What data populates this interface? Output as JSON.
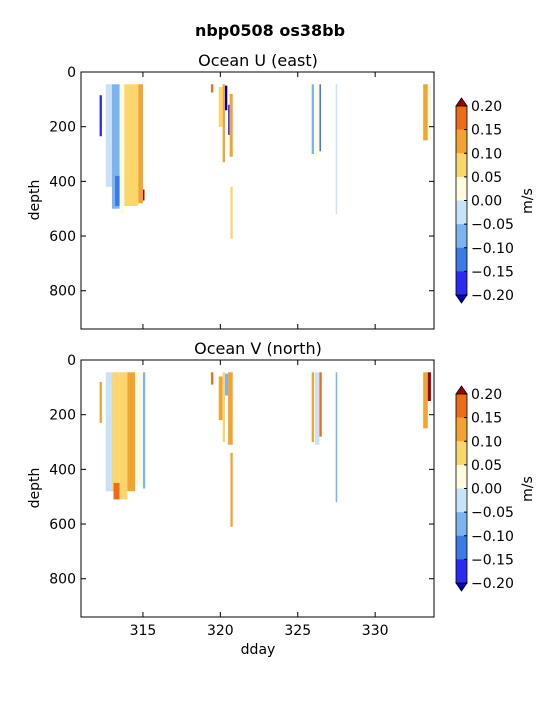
{
  "figure": {
    "suptitle": "nbp0508 os38bb"
  },
  "colorbar": {
    "label": "m/s",
    "levels": [
      -0.2,
      -0.15,
      -0.1,
      -0.05,
      0.0,
      0.05,
      0.1,
      0.15,
      0.2
    ],
    "tick_labels": [
      "−0.20",
      "−0.15",
      "−0.10",
      "−0.05",
      "0.00",
      "0.05",
      "0.10",
      "0.15",
      "0.20"
    ],
    "colors": [
      "#2a2af2",
      "#3c7ae6",
      "#7cb4ee",
      "#c8e2f6",
      "#fffbe0",
      "#fbd66c",
      "#f2a431",
      "#ec6c1c"
    ],
    "under_color": "#0000b0",
    "over_color": "#a00000"
  },
  "chart_data": [
    {
      "type": "heatmap",
      "title": "Ocean U (east)",
      "xlabel": "",
      "ylabel": "depth",
      "xlim": [
        311,
        333.8
      ],
      "ylim": [
        940,
        0
      ],
      "yticks": [
        0,
        200,
        400,
        600,
        800
      ],
      "xticks": [
        315,
        320,
        325,
        330
      ],
      "show_xticklabels": false,
      "grid": false,
      "colorbar_label": "m/s",
      "columns": [
        {
          "x0": 312.2,
          "x1": 312.35,
          "d0": 85,
          "d1": 235,
          "v": -0.18
        },
        {
          "x0": 312.6,
          "x1": 313.0,
          "d0": 45,
          "d1": 420,
          "v": -0.04
        },
        {
          "x0": 313.0,
          "x1": 313.5,
          "d0": 45,
          "d1": 500,
          "v": -0.06
        },
        {
          "x0": 313.2,
          "x1": 313.5,
          "d0": 380,
          "d1": 490,
          "v": -0.12
        },
        {
          "x0": 313.5,
          "x1": 313.8,
          "d0": 45,
          "d1": 520,
          "v": 0.02
        },
        {
          "x0": 313.8,
          "x1": 314.7,
          "d0": 45,
          "d1": 490,
          "v": 0.08
        },
        {
          "x0": 314.7,
          "x1": 315.0,
          "d0": 45,
          "d1": 480,
          "v": 0.12
        },
        {
          "x0": 315.0,
          "x1": 315.1,
          "d0": 430,
          "d1": 470,
          "v": 0.22
        },
        {
          "x0": 319.4,
          "x1": 319.55,
          "d0": 45,
          "d1": 75,
          "v": 0.17
        },
        {
          "x0": 319.9,
          "x1": 320.15,
          "d0": 55,
          "d1": 200,
          "v": 0.06
        },
        {
          "x0": 320.15,
          "x1": 320.3,
          "d0": 45,
          "d1": 330,
          "v": 0.12
        },
        {
          "x0": 320.3,
          "x1": 320.45,
          "d0": 50,
          "d1": 140,
          "v": -0.22
        },
        {
          "x0": 320.5,
          "x1": 320.6,
          "d0": 120,
          "d1": 230,
          "v": -0.18
        },
        {
          "x0": 320.6,
          "x1": 320.8,
          "d0": 80,
          "d1": 310,
          "v": 0.1
        },
        {
          "x0": 320.65,
          "x1": 320.8,
          "d0": 420,
          "d1": 610,
          "v": 0.05
        },
        {
          "x0": 325.9,
          "x1": 326.05,
          "d0": 45,
          "d1": 300,
          "v": -0.08
        },
        {
          "x0": 326.1,
          "x1": 326.4,
          "d0": 45,
          "d1": 310,
          "v": 0.04
        },
        {
          "x0": 326.4,
          "x1": 326.5,
          "d0": 45,
          "d1": 290,
          "v": -0.12
        },
        {
          "x0": 327.45,
          "x1": 327.55,
          "d0": 45,
          "d1": 520,
          "v": -0.04
        },
        {
          "x0": 333.1,
          "x1": 333.4,
          "d0": 45,
          "d1": 250,
          "v": 0.13
        },
        {
          "x0": 333.4,
          "x1": 333.6,
          "d0": 45,
          "d1": 250,
          "v": 0.04
        }
      ]
    },
    {
      "type": "heatmap",
      "title": "Ocean V (north)",
      "xlabel": "dday",
      "ylabel": "depth",
      "xlim": [
        311,
        333.8
      ],
      "ylim": [
        940,
        0
      ],
      "yticks": [
        0,
        200,
        400,
        600,
        800
      ],
      "xticks": [
        315,
        320,
        325,
        330
      ],
      "show_xticklabels": true,
      "grid": false,
      "colorbar_label": "m/s",
      "columns": [
        {
          "x0": 312.2,
          "x1": 312.35,
          "d0": 80,
          "d1": 230,
          "v": 0.1
        },
        {
          "x0": 312.6,
          "x1": 313.0,
          "d0": 45,
          "d1": 480,
          "v": -0.03
        },
        {
          "x0": 313.0,
          "x1": 313.5,
          "d0": 45,
          "d1": 480,
          "v": 0.05
        },
        {
          "x0": 313.1,
          "x1": 313.5,
          "d0": 450,
          "d1": 510,
          "v": 0.16
        },
        {
          "x0": 313.5,
          "x1": 314.0,
          "d0": 45,
          "d1": 510,
          "v": 0.08
        },
        {
          "x0": 314.0,
          "x1": 314.5,
          "d0": 45,
          "d1": 480,
          "v": 0.11
        },
        {
          "x0": 314.5,
          "x1": 315.0,
          "d0": 45,
          "d1": 460,
          "v": 0.03
        },
        {
          "x0": 315.0,
          "x1": 315.15,
          "d0": 45,
          "d1": 470,
          "v": -0.06
        },
        {
          "x0": 319.4,
          "x1": 319.55,
          "d0": 45,
          "d1": 90,
          "v": 0.18
        },
        {
          "x0": 319.9,
          "x1": 320.15,
          "d0": 60,
          "d1": 220,
          "v": 0.14
        },
        {
          "x0": 320.15,
          "x1": 320.3,
          "d0": 45,
          "d1": 300,
          "v": 0.09
        },
        {
          "x0": 320.3,
          "x1": 320.5,
          "d0": 50,
          "d1": 130,
          "v": -0.1
        },
        {
          "x0": 320.5,
          "x1": 320.8,
          "d0": 45,
          "d1": 310,
          "v": 0.12
        },
        {
          "x0": 320.65,
          "x1": 320.8,
          "d0": 340,
          "d1": 610,
          "v": 0.14
        },
        {
          "x0": 325.9,
          "x1": 326.05,
          "d0": 45,
          "d1": 300,
          "v": 0.1
        },
        {
          "x0": 326.1,
          "x1": 326.4,
          "d0": 45,
          "d1": 310,
          "v": -0.04
        },
        {
          "x0": 326.4,
          "x1": 326.55,
          "d0": 45,
          "d1": 280,
          "v": 0.15
        },
        {
          "x0": 327.45,
          "x1": 327.55,
          "d0": 45,
          "d1": 520,
          "v": -0.06
        },
        {
          "x0": 333.1,
          "x1": 333.4,
          "d0": 45,
          "d1": 250,
          "v": 0.1
        },
        {
          "x0": 333.4,
          "x1": 333.6,
          "d0": 45,
          "d1": 150,
          "v": 0.21
        }
      ]
    }
  ]
}
